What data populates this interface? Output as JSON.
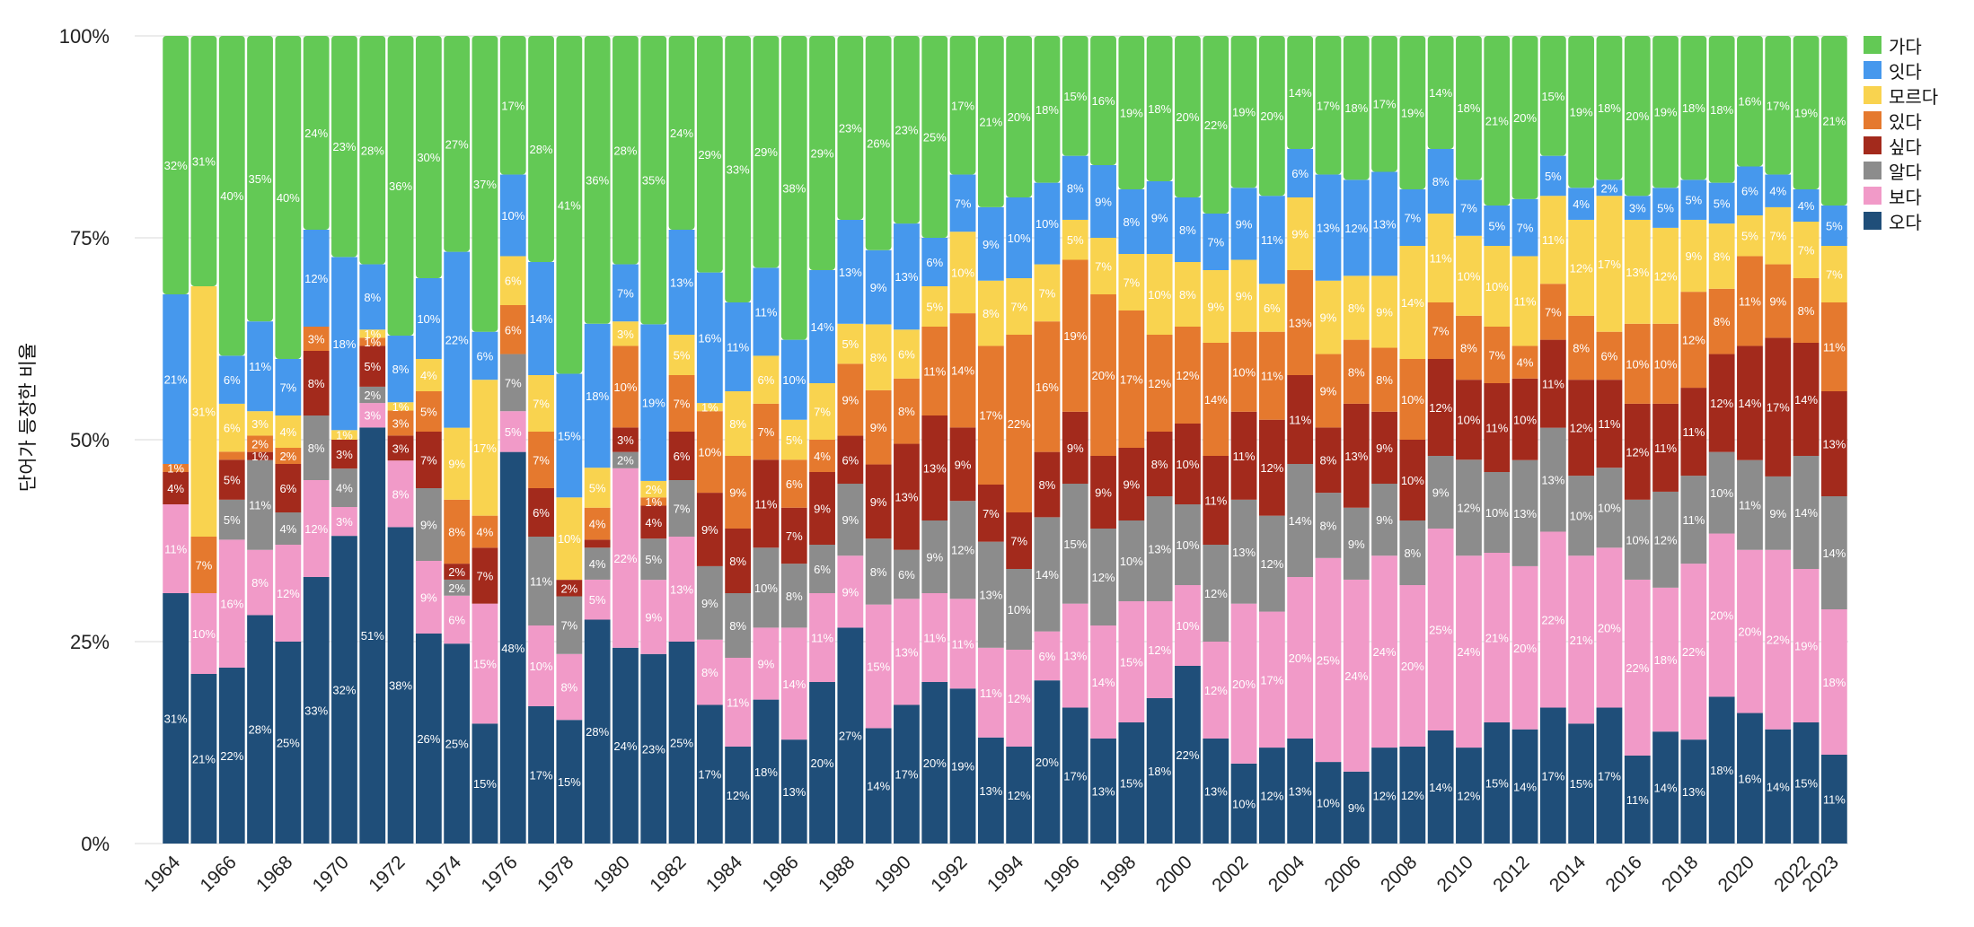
{
  "chart_data": {
    "type": "bar",
    "stacked": true,
    "normalized": true,
    "title": "",
    "xlabel": "",
    "ylabel": "단어가 등장한 비율",
    "ylim": [
      0,
      100
    ],
    "y_ticks": [
      "0%",
      "25%",
      "50%",
      "75%",
      "100%"
    ],
    "x_tick_labels": [
      "1964",
      "1966",
      "1968",
      "1970",
      "1972",
      "1974",
      "1976",
      "1978",
      "1980",
      "1982",
      "1984",
      "1986",
      "1988",
      "1990",
      "1992",
      "1994",
      "1996",
      "1998",
      "2000",
      "2002",
      "2004",
      "2006",
      "2008",
      "2010",
      "2012",
      "2014",
      "2016",
      "2018",
      "2020",
      "2022",
      "2023"
    ],
    "legend_position": "right",
    "categories": [
      1964,
      1965,
      1966,
      1967,
      1968,
      1969,
      1970,
      1971,
      1972,
      1973,
      1974,
      1975,
      1976,
      1977,
      1978,
      1979,
      1980,
      1981,
      1982,
      1983,
      1984,
      1985,
      1986,
      1987,
      1988,
      1989,
      1990,
      1991,
      1992,
      1993,
      1994,
      1995,
      1996,
      1997,
      1998,
      1999,
      2000,
      2001,
      2002,
      2003,
      2004,
      2005,
      2006,
      2007,
      2008,
      2009,
      2010,
      2011,
      2012,
      2013,
      2014,
      2015,
      2016,
      2017,
      2018,
      2019,
      2020,
      2021,
      2022,
      2023
    ],
    "series": [
      {
        "name": "오다",
        "color": "#1f4e79",
        "values": [
          31,
          21,
          22,
          28,
          25,
          33,
          32,
          51,
          38,
          26,
          25,
          15,
          48,
          17,
          15,
          28,
          24,
          23,
          25,
          17,
          12,
          18,
          13,
          20,
          27,
          14,
          17,
          20,
          19,
          13,
          12,
          20,
          17,
          13,
          15,
          18,
          22,
          13,
          10,
          12,
          13,
          10,
          9,
          12,
          12,
          14,
          12,
          15,
          14,
          17,
          15,
          17,
          11,
          14,
          13,
          18,
          16,
          14,
          15,
          11
        ]
      },
      {
        "name": "보다",
        "color": "#f19ac8",
        "values": [
          11,
          10,
          16,
          8,
          12,
          12,
          3,
          3,
          8,
          9,
          6,
          15,
          5,
          10,
          8,
          5,
          22,
          9,
          13,
          8,
          11,
          9,
          14,
          11,
          9,
          15,
          13,
          11,
          11,
          11,
          12,
          6,
          13,
          14,
          15,
          12,
          10,
          12,
          20,
          17,
          20,
          25,
          24,
          24,
          20,
          25,
          24,
          21,
          20,
          22,
          21,
          20,
          22,
          18,
          22,
          20,
          20,
          22,
          19,
          18
        ]
      },
      {
        "name": "알다",
        "color": "#8c8c8c",
        "values": [
          0,
          0,
          5,
          11,
          4,
          8,
          4,
          2,
          0,
          9,
          2,
          0,
          7,
          11,
          7,
          4,
          2,
          5,
          7,
          9,
          8,
          10,
          8,
          6,
          9,
          8,
          6,
          9,
          12,
          13,
          10,
          14,
          15,
          12,
          10,
          13,
          10,
          12,
          13,
          12,
          14,
          8,
          9,
          9,
          8,
          9,
          12,
          10,
          13,
          13,
          10,
          10,
          10,
          12,
          11,
          10,
          11,
          9,
          14,
          14
        ]
      },
      {
        "name": "싶다",
        "color": "#a32a1c",
        "values": [
          4,
          0,
          5,
          1,
          6,
          8,
          3,
          5,
          3,
          7,
          2,
          7,
          0,
          6,
          2,
          1,
          3,
          4,
          6,
          9,
          8,
          11,
          7,
          9,
          6,
          9,
          13,
          13,
          9,
          7,
          7,
          8,
          9,
          9,
          9,
          8,
          10,
          11,
          11,
          12,
          11,
          8,
          13,
          9,
          10,
          12,
          10,
          11,
          10,
          11,
          12,
          11,
          12,
          11,
          11,
          12,
          14,
          17,
          14,
          13
        ]
      },
      {
        "name": "있다",
        "color": "#e5792e",
        "values": [
          1,
          7,
          1,
          2,
          2,
          3,
          0,
          1,
          3,
          5,
          8,
          4,
          6,
          7,
          0,
          4,
          10,
          1,
          7,
          10,
          9,
          7,
          6,
          4,
          9,
          9,
          8,
          11,
          14,
          17,
          22,
          16,
          19,
          20,
          17,
          12,
          12,
          14,
          10,
          11,
          13,
          9,
          8,
          8,
          10,
          7,
          8,
          7,
          4,
          7,
          8,
          6,
          10,
          10,
          12,
          8,
          11,
          9,
          8,
          11
        ]
      },
      {
        "name": "모르다",
        "color": "#f9d34f",
        "values": [
          0,
          31,
          6,
          3,
          4,
          0,
          1,
          1,
          1,
          4,
          9,
          17,
          6,
          7,
          10,
          5,
          3,
          2,
          5,
          1,
          8,
          6,
          5,
          7,
          5,
          8,
          6,
          5,
          10,
          8,
          7,
          7,
          5,
          7,
          7,
          10,
          8,
          9,
          9,
          6,
          9,
          9,
          8,
          9,
          14,
          11,
          10,
          10,
          11,
          11,
          12,
          17,
          13,
          12,
          9,
          8,
          5,
          7,
          7,
          7
        ]
      },
      {
        "name": "잇다",
        "color": "#4698ed",
        "values": [
          21,
          0,
          6,
          11,
          7,
          12,
          18,
          8,
          8,
          10,
          22,
          6,
          10,
          14,
          15,
          18,
          7,
          19,
          13,
          16,
          11,
          11,
          10,
          14,
          13,
          9,
          13,
          6,
          7,
          9,
          10,
          10,
          8,
          9,
          8,
          9,
          8,
          7,
          9,
          11,
          6,
          13,
          12,
          13,
          7,
          8,
          7,
          5,
          7,
          5,
          4,
          2,
          3,
          5,
          5,
          5,
          6,
          4,
          4,
          5
        ]
      },
      {
        "name": "가다",
        "color": "#63c955",
        "values": [
          32,
          31,
          40,
          35,
          40,
          24,
          23,
          28,
          36,
          30,
          27,
          37,
          17,
          28,
          41,
          36,
          28,
          35,
          24,
          29,
          33,
          29,
          38,
          29,
          23,
          26,
          23,
          25,
          17,
          21,
          20,
          18,
          15,
          16,
          19,
          18,
          20,
          22,
          19,
          20,
          14,
          17,
          18,
          17,
          19,
          14,
          18,
          21,
          20,
          15,
          19,
          18,
          20,
          19,
          18,
          18,
          16,
          17,
          19,
          21
        ]
      }
    ]
  }
}
